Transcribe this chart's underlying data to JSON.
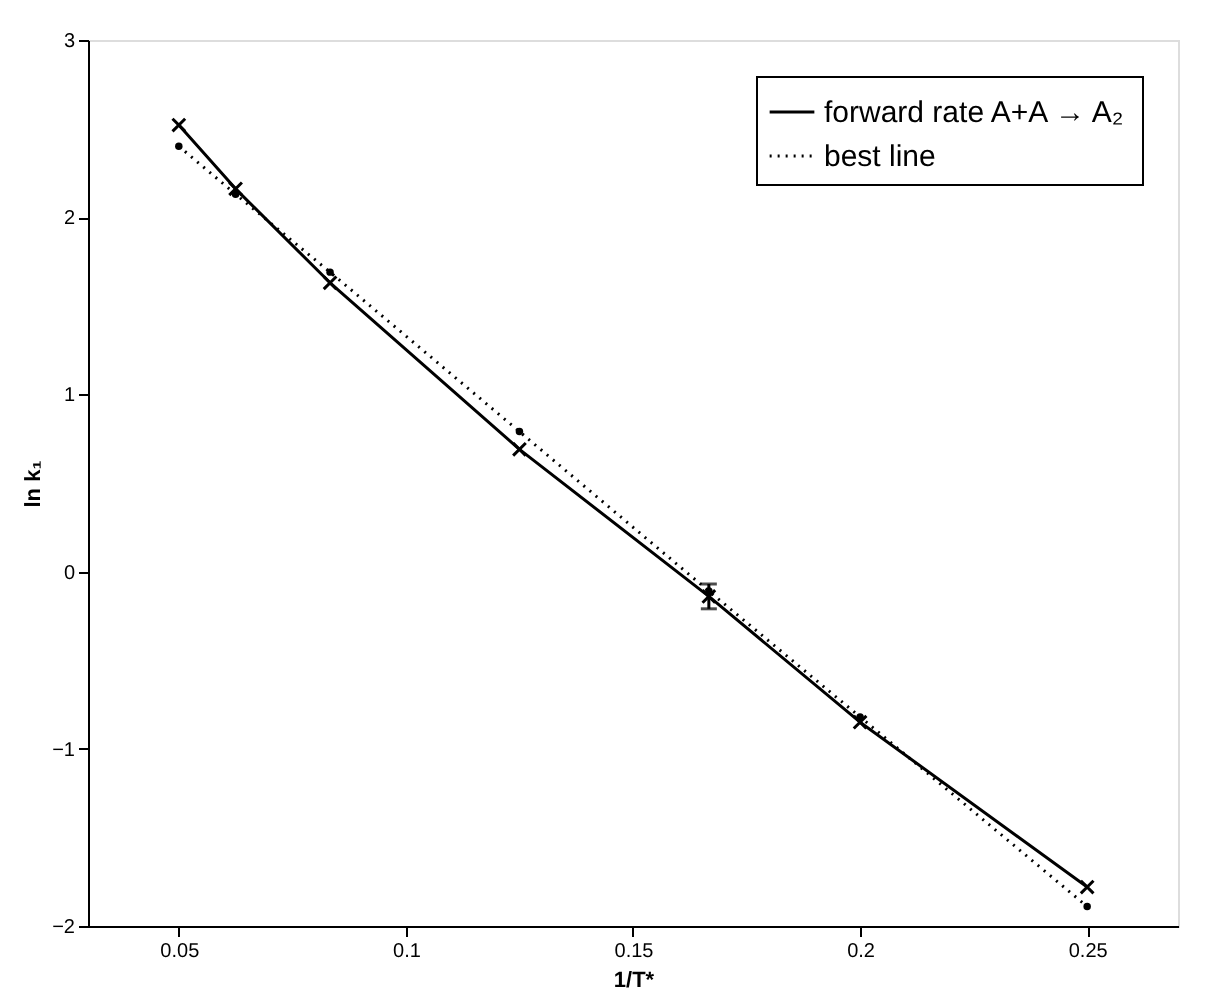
{
  "chart_data": {
    "type": "line",
    "xlabel": "1/T*",
    "ylabel": "ln k₁",
    "x": [
      0.05,
      0.0625,
      0.0833,
      0.125,
      0.1667,
      0.2,
      0.25
    ],
    "series": [
      {
        "name": "forward rate A+A → A₂",
        "color": "#000000",
        "values": [
          2.52,
          2.16,
          1.63,
          0.69,
          -0.14,
          -0.85,
          -1.78
        ],
        "errors": [
          null,
          null,
          null,
          null,
          0.07,
          null,
          null
        ],
        "marker": "cross",
        "line_style": "solid"
      },
      {
        "name": "best line",
        "color": "#000000",
        "values": [
          2.4,
          2.13,
          1.69,
          0.79,
          -0.11,
          -0.82,
          -1.89
        ],
        "marker": "circle",
        "line_style": "dotted"
      }
    ],
    "xlim": [
      0.03,
      0.27
    ],
    "xticks": [
      0.05,
      0.1,
      0.15,
      0.2,
      0.25
    ],
    "ylim": [
      -2,
      3
    ],
    "yticks": [
      -2,
      -1,
      0,
      1,
      2,
      3
    ],
    "grid": false,
    "legend": "top right"
  }
}
